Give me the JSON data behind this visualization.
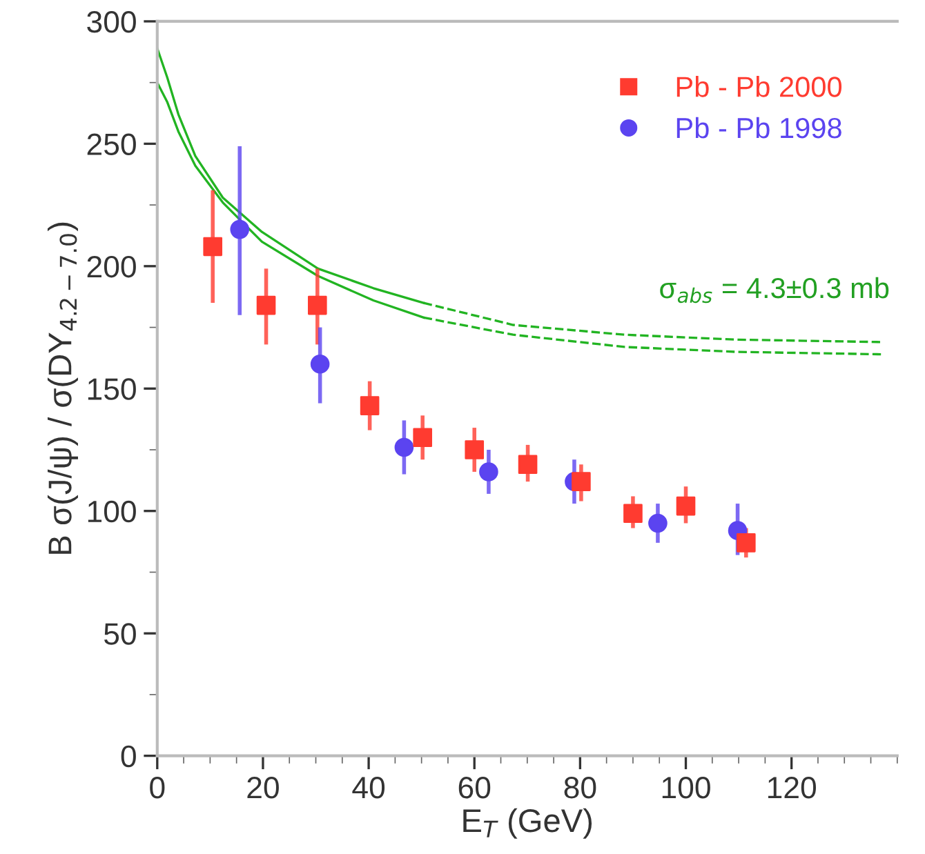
{
  "chart_data": {
    "type": "scatter",
    "xlabel": "E$_{T}$ (GeV)",
    "ylabel": "B σ(J/ψ) / σ(DY$_{4.2−7.0}$)",
    "xlim": [
      0,
      140
    ],
    "ylim": [
      0,
      300
    ],
    "xticks": [
      0,
      20,
      40,
      60,
      80,
      100,
      120
    ],
    "yticks": [
      0,
      50,
      100,
      150,
      200,
      250,
      300
    ],
    "grid": false,
    "legend": "top right",
    "annotations": [
      "σ$_{abs}$ = 4.3±0.3 mb"
    ],
    "series": [
      {
        "name": "Pb - Pb 2000",
        "marker": "square",
        "color": "#ff3b30",
        "x": [
          10.5,
          20.6,
          30.3,
          40.2,
          50.2,
          60,
          70.1,
          80.2,
          90,
          100,
          111.4
        ],
        "values": [
          208,
          184,
          184,
          143,
          130,
          125,
          119,
          112,
          99,
          102,
          87
        ],
        "errors": [
          [
            185,
            231
          ],
          [
            168,
            199
          ],
          [
            168,
            199
          ],
          [
            133,
            153
          ],
          [
            121,
            139
          ],
          [
            116,
            134
          ],
          [
            112,
            127
          ],
          [
            104,
            119
          ],
          [
            93,
            106
          ],
          [
            95,
            110
          ],
          [
            81,
            93
          ]
        ]
      },
      {
        "name": "Pb - Pb 1998",
        "marker": "circle",
        "color": "#5b44f0",
        "x": [
          15.6,
          30.8,
          46.7,
          62.7,
          78.9,
          94.7,
          109.8
        ],
        "values": [
          215,
          160,
          126,
          116,
          112,
          95,
          92
        ],
        "errors": [
          [
            180,
            249
          ],
          [
            144,
            175
          ],
          [
            115,
            137
          ],
          [
            107,
            125
          ],
          [
            103,
            121
          ],
          [
            87,
            103
          ],
          [
            82,
            103
          ]
        ]
      },
      {
        "type": "line",
        "line_style": "solid",
        "marker": "none",
        "color": "#22b422",
        "x": [
          0,
          1.9,
          4,
          7.2,
          12.4,
          19.8,
          30.4,
          40.9,
          50.4
        ],
        "values": [
          289,
          277,
          262,
          245,
          228,
          214,
          199,
          191,
          185
        ]
      },
      {
        "type": "line",
        "line_style": "dashed",
        "marker": "none",
        "color": "#22b422",
        "x": [
          50.4,
          67.3,
          88.4,
          109.5,
          137
        ],
        "values": [
          185,
          176,
          172,
          170,
          169
        ]
      },
      {
        "type": "line",
        "line_style": "solid",
        "marker": "none",
        "color": "#22b422",
        "x": [
          0,
          1.9,
          4,
          7.2,
          12.4,
          19.8,
          30.4,
          40.9,
          50.4
        ],
        "values": [
          275,
          267,
          255,
          241,
          226,
          210,
          196,
          186,
          179
        ]
      },
      {
        "type": "line",
        "line_style": "dashed",
        "marker": "none",
        "color": "#22b422",
        "x": [
          50.4,
          67.3,
          88.4,
          109.5,
          137
        ],
        "values": [
          179,
          172,
          167,
          165,
          164
        ]
      }
    ]
  }
}
